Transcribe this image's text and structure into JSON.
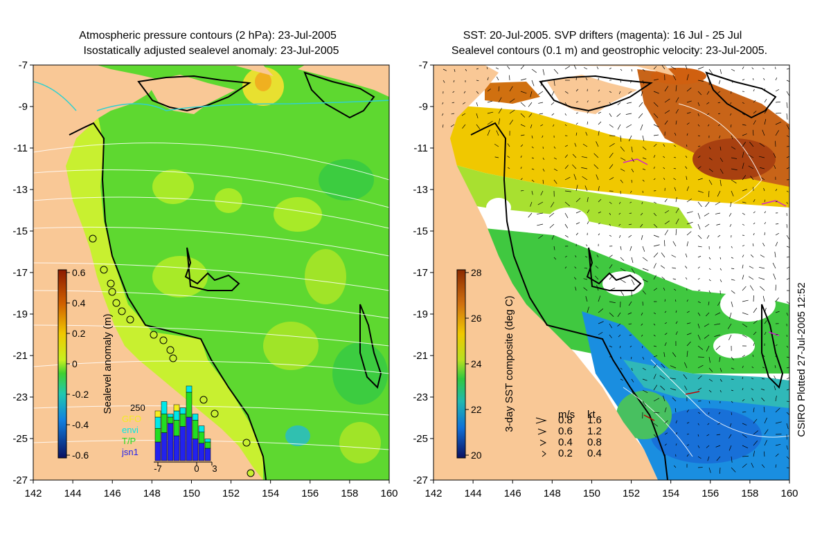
{
  "left_panel": {
    "title_line1": "Atmospheric pressure contours (2 hPa): 23-Jul-2005",
    "title_line2": "Isostatically adjusted sealevel anomaly: 23-Jul-2005",
    "colorbar": {
      "label": "Sealevel anomaly (m)",
      "ticks": [
        "0.6",
        "0.4",
        "0.2",
        "0",
        "-0.2",
        "-0.4",
        "-0.6"
      ],
      "colors": {
        "high": "#8b1a00",
        "upper": "#e8a000",
        "mid_high": "#f4ee20",
        "zero": "#7ee02a",
        "mid_low": "#2cc8c0",
        "lower": "#1060d8",
        "low": "#0a1060"
      }
    },
    "inset": {
      "count_label": "250",
      "legend": [
        {
          "label": "GFO",
          "color": "#f4ee20"
        },
        {
          "label": "envi",
          "color": "#00e8e8"
        },
        {
          "label": "T/P",
          "color": "#22dd22"
        },
        {
          "label": "jsn1",
          "color": "#2222ee"
        }
      ],
      "x_ticks": [
        "-7",
        "0",
        "3"
      ]
    }
  },
  "right_panel": {
    "title_line1": "SST: 20-Jul-2005. SVP drifters (magenta): 16 Jul - 25 Jul",
    "title_line2": "Sealevel contours (0.1 m) and geostrophic velocity: 23-Jul-2005.",
    "colorbar": {
      "label": "3-day SST composite (deg C)",
      "ticks": [
        "28",
        "26",
        "24",
        "22",
        "20"
      ]
    },
    "velocity_legend": {
      "header_ms": "m/s",
      "header_kt": "kt",
      "rows": [
        {
          "ms": "0.8",
          "kt": "1.6"
        },
        {
          "ms": "0.6",
          "kt": "1.2"
        },
        {
          "ms": "0.4",
          "kt": "0.8"
        },
        {
          "ms": "0.2",
          "kt": "0.4"
        }
      ]
    },
    "credit": "CSIRO Plotted 27-Jul-2005 12:52"
  },
  "axes": {
    "lat_ticks": [
      "-7",
      "-9",
      "-11",
      "-13",
      "-15",
      "-17",
      "-19",
      "-21",
      "-23",
      "-25",
      "-27"
    ],
    "lon_ticks": [
      "142",
      "144",
      "146",
      "148",
      "150",
      "152",
      "154",
      "156",
      "158",
      "160"
    ],
    "lon_range": [
      142,
      160
    ],
    "lat_range": [
      -27,
      -7
    ]
  },
  "colors": {
    "land": "#f9c896",
    "ocean_base": "#5ed830",
    "shelf": "#c8f030"
  }
}
